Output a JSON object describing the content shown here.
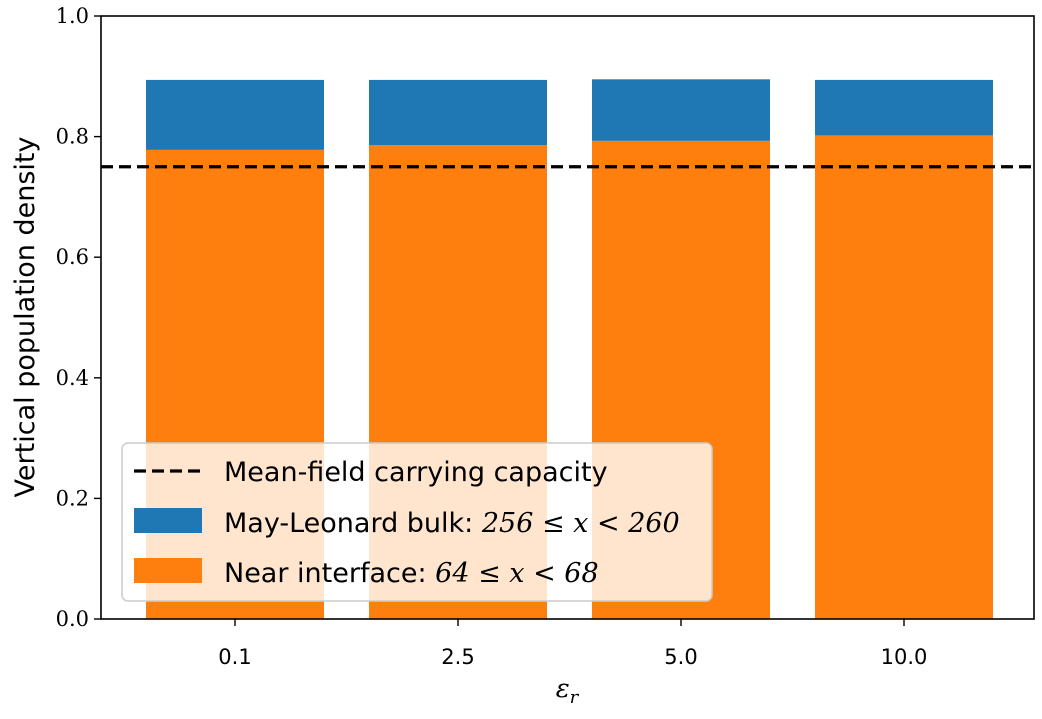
{
  "chart_data": {
    "type": "bar",
    "stacked": true,
    "categories": [
      "0.1",
      "2.5",
      "5.0",
      "10.0"
    ],
    "series": [
      {
        "name": "Near interface: 64 ≤ x < 68",
        "color": "#ff7f0e",
        "values": [
          0.778,
          0.786,
          0.793,
          0.802
        ]
      },
      {
        "name": "May-Leonard bulk: 256 ≤ x < 260",
        "color": "#1f77b4",
        "values": [
          0.116,
          0.108,
          0.102,
          0.092
        ],
        "totals": [
          0.894,
          0.894,
          0.895,
          0.894
        ]
      }
    ],
    "reference_line": {
      "name": "Mean-field carrying capacity",
      "value": 0.75,
      "style": "dashed",
      "color": "#000000"
    },
    "title": "",
    "xlabel": "ε_r",
    "ylabel": "Vertical population density",
    "ylim": [
      0,
      1.0
    ],
    "yticks": [
      "0.0",
      "0.2",
      "0.4",
      "0.6",
      "0.8",
      "1.0"
    ],
    "grid": false,
    "legend_position": "lower-left",
    "legend": {
      "line_label": "Mean-field carrying capacity",
      "bulk_prefix": "May-Leonard bulk: ",
      "bulk_math": "256 ≤ x < 260",
      "near_prefix": "Near interface: ",
      "near_math": "64 ≤ x < 68"
    }
  }
}
